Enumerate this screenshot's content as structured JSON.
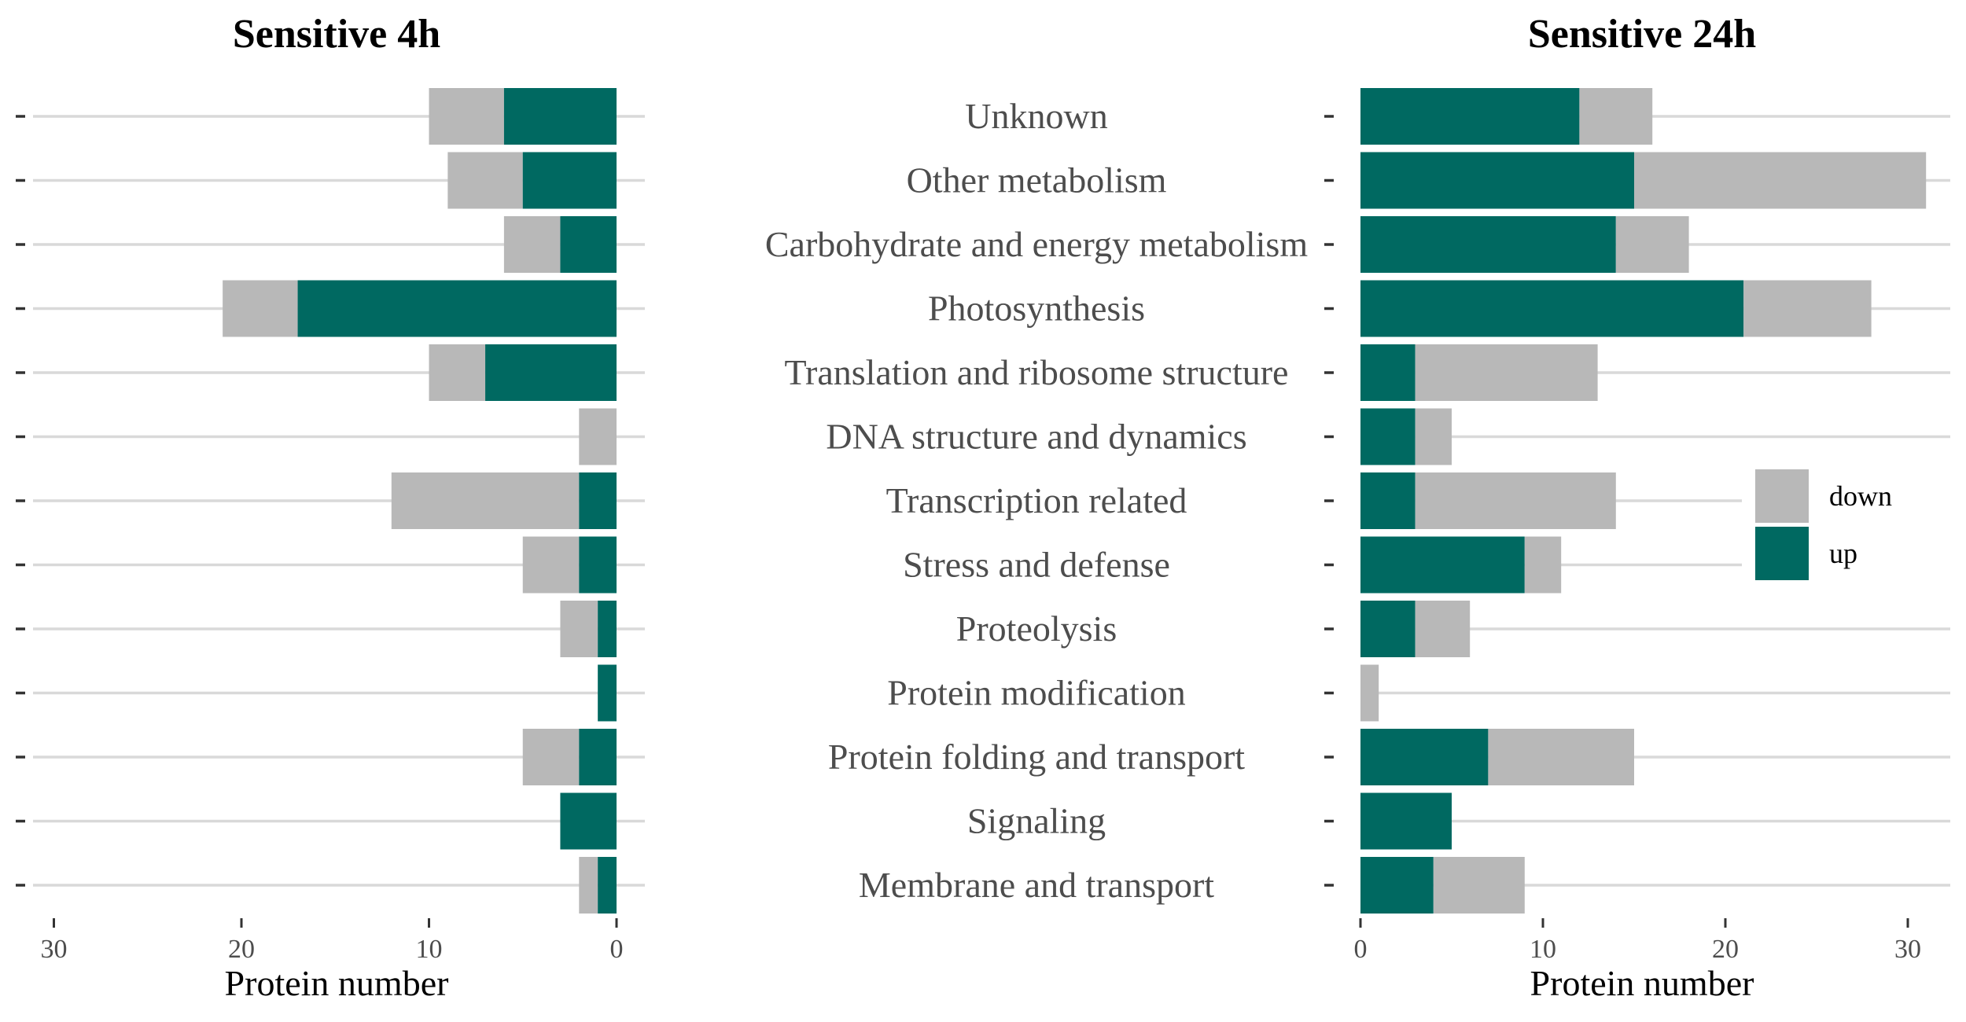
{
  "chart_data": [
    {
      "type": "bar",
      "orientation": "horizontal",
      "stacked": true,
      "title": "Sensitive 4h",
      "xlabel": "Protein number",
      "xlim": [
        0,
        31
      ],
      "x_reversed": true,
      "xticks": [
        0,
        10,
        20,
        30
      ],
      "grid": true,
      "categories": [
        "Unknown",
        "Other metabolism",
        "Carbohydrate and energy metabolism",
        "Photosynthesis",
        "Translation and ribosome structure",
        "DNA structure and dynamics",
        "Transcription related",
        "Stress and defense",
        "Proteolysis",
        "Protein modification",
        "Protein folding and transport",
        "Signaling",
        "Membrane and transport"
      ],
      "series": [
        {
          "name": "up",
          "color": "#006961",
          "values": [
            6,
            5,
            3,
            17,
            7,
            0,
            2,
            2,
            1,
            1,
            2,
            3,
            1
          ]
        },
        {
          "name": "down",
          "color": "#b8b8b8",
          "values": [
            4,
            4,
            3,
            4,
            3,
            2,
            10,
            3,
            2,
            0,
            3,
            0,
            1
          ]
        }
      ]
    },
    {
      "type": "bar",
      "orientation": "horizontal",
      "stacked": true,
      "title": "Sensitive 24h",
      "xlabel": "Protein number",
      "xlim": [
        0,
        31
      ],
      "xticks": [
        0,
        10,
        20,
        30
      ],
      "grid": true,
      "legend_position": "right",
      "categories": [
        "Unknown",
        "Other metabolism",
        "Carbohydrate and energy metabolism",
        "Photosynthesis",
        "Translation and ribosome structure",
        "DNA structure and dynamics",
        "Transcription related",
        "Stress and defense",
        "Proteolysis",
        "Protein modification",
        "Protein folding and transport",
        "Signaling",
        "Membrane and transport"
      ],
      "series": [
        {
          "name": "up",
          "color": "#006961",
          "values": [
            12,
            15,
            14,
            21,
            3,
            3,
            3,
            9,
            3,
            0,
            7,
            5,
            4
          ]
        },
        {
          "name": "down",
          "color": "#b8b8b8",
          "values": [
            4,
            16,
            4,
            7,
            10,
            2,
            11,
            2,
            3,
            1,
            8,
            0,
            5
          ]
        }
      ]
    }
  ],
  "legend": [
    {
      "label": "down",
      "color": "#b8b8b8"
    },
    {
      "label": "up",
      "color": "#006961"
    }
  ]
}
